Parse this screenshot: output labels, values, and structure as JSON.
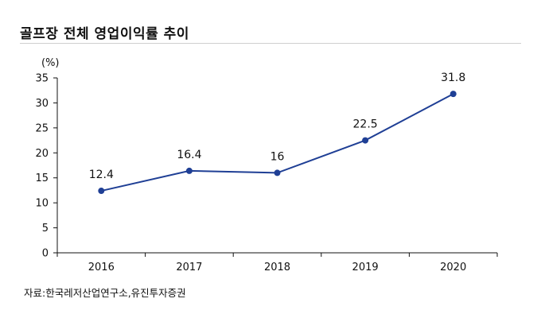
{
  "title": "골프장 전체 영업이익률 추이",
  "source": "자료:한국레저산업연구소,유진투자증권",
  "colors": {
    "series": "#1f3f95",
    "axis": "#111111",
    "rule": "#cfcfcf"
  },
  "chart_data": {
    "type": "line",
    "title": "골프장 전체 영업이익률 추이",
    "ylabel": "(%)",
    "xlabel": "",
    "categories": [
      "2016",
      "2017",
      "2018",
      "2019",
      "2020"
    ],
    "values": [
      12.4,
      16.4,
      16,
      22.5,
      31.8
    ],
    "data_labels": [
      "12.4",
      "16.4",
      "16",
      "22.5",
      "31.8"
    ],
    "ylim": [
      0,
      35
    ],
    "yticks": [
      0,
      5,
      10,
      15,
      20,
      25,
      30,
      35
    ],
    "ytick_labels": [
      "0",
      "5",
      "10",
      "15",
      "20",
      "25",
      "30",
      "35"
    ],
    "grid": false,
    "legend": "none"
  }
}
